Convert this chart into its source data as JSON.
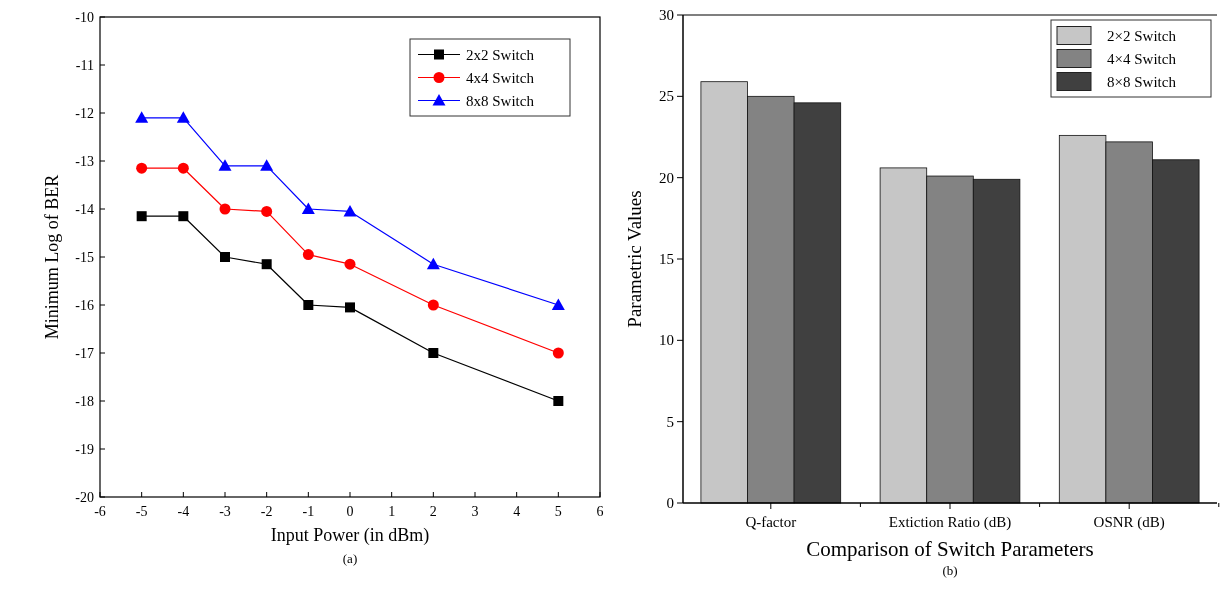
{
  "chart_data": [
    {
      "type": "line",
      "xlabel": "Input Power (in dBm)",
      "ylabel": "Minimum Log of BER",
      "annotations": [
        "(a)"
      ],
      "x": [
        -5,
        -4,
        -3,
        -2,
        -1,
        0,
        2,
        5
      ],
      "series": [
        {
          "name": "2x2 Switch",
          "color": "#000000",
          "marker": "square",
          "values": [
            -14.15,
            -14.15,
            -15.0,
            -15.15,
            -16.0,
            -16.05,
            -17.0,
            -18.0
          ]
        },
        {
          "name": "4x4 Switch",
          "color": "#ff0000",
          "marker": "circle",
          "values": [
            -13.15,
            -13.15,
            -14.0,
            -14.05,
            -14.95,
            -15.15,
            -16.0,
            -17.0
          ]
        },
        {
          "name": "8x8 Switch",
          "color": "#0000ff",
          "marker": "triangle",
          "values": [
            -12.1,
            -12.1,
            -13.1,
            -13.1,
            -14.0,
            -14.05,
            -15.15,
            -16.0
          ]
        }
      ],
      "xlim": [
        -6,
        6
      ],
      "xticks": [
        -6,
        -5,
        -4,
        -3,
        -2,
        -1,
        0,
        1,
        2,
        3,
        4,
        5,
        6
      ],
      "ylim": [
        -20,
        -10
      ],
      "yticks": [
        -20,
        -19,
        -18,
        -17,
        -16,
        -15,
        -14,
        -13,
        -12,
        -11,
        -10
      ],
      "legend": "top right",
      "grid": false
    },
    {
      "type": "bar",
      "xlabel": "Comparison of Switch Parameters",
      "ylabel": "Parametric Values",
      "annotations": [
        "(b)"
      ],
      "categories": [
        "Q-factor",
        "Extiction Ratio (dB)",
        "OSNR (dB)"
      ],
      "series": [
        {
          "name": "2×2 Switch",
          "color": "#c6c6c6",
          "values": [
            25.9,
            20.6,
            22.6
          ]
        },
        {
          "name": "4×4 Switch",
          "color": "#838383",
          "values": [
            25.0,
            20.1,
            22.2
          ]
        },
        {
          "name": "8×8 Switch",
          "color": "#404040",
          "values": [
            24.6,
            19.9,
            21.1
          ]
        }
      ],
      "ylim": [
        0,
        30
      ],
      "yticks": [
        0,
        5,
        10,
        15,
        20,
        25,
        30
      ],
      "legend": "top right",
      "grid": false
    }
  ]
}
